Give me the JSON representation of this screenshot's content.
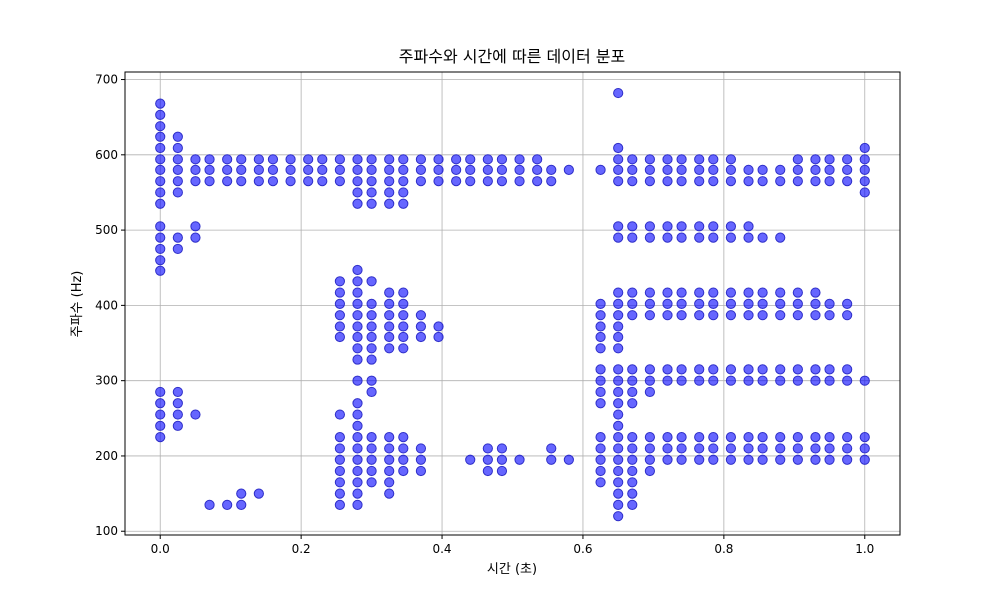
{
  "chart_data": {
    "type": "scatter",
    "title": "주파수와 시간에 따른 데이터 분포",
    "xlabel": "시간 (초)",
    "ylabel": "주파수 (Hz)",
    "xlim": [
      -0.05,
      1.05
    ],
    "ylim": [
      95,
      710
    ],
    "xticks": [
      0.0,
      0.2,
      0.4,
      0.6,
      0.8,
      1.0
    ],
    "xtick_labels": [
      "0.0",
      "0.2",
      "0.4",
      "0.6",
      "0.8",
      "1.0"
    ],
    "yticks": [
      100,
      200,
      300,
      400,
      500,
      600,
      700
    ],
    "ytick_labels": [
      "100",
      "200",
      "300",
      "400",
      "500",
      "600",
      "700"
    ],
    "grid": true,
    "marker_color": "#0000ff",
    "marker_alpha": 0.6,
    "points": [
      [
        0.0,
        668
      ],
      [
        0.0,
        653
      ],
      [
        0.0,
        638
      ],
      [
        0.0,
        624
      ],
      [
        0.0,
        609
      ],
      [
        0.0,
        594
      ],
      [
        0.0,
        580
      ],
      [
        0.0,
        565
      ],
      [
        0.0,
        550
      ],
      [
        0.0,
        535
      ],
      [
        0.0,
        505
      ],
      [
        0.0,
        490
      ],
      [
        0.0,
        475
      ],
      [
        0.0,
        460
      ],
      [
        0.0,
        446
      ],
      [
        0.0,
        285
      ],
      [
        0.0,
        270
      ],
      [
        0.0,
        255
      ],
      [
        0.0,
        240
      ],
      [
        0.0,
        225
      ],
      [
        0.025,
        624
      ],
      [
        0.025,
        609
      ],
      [
        0.025,
        594
      ],
      [
        0.025,
        580
      ],
      [
        0.025,
        565
      ],
      [
        0.025,
        550
      ],
      [
        0.025,
        490
      ],
      [
        0.025,
        475
      ],
      [
        0.025,
        285
      ],
      [
        0.025,
        270
      ],
      [
        0.025,
        255
      ],
      [
        0.025,
        240
      ],
      [
        0.05,
        594
      ],
      [
        0.05,
        580
      ],
      [
        0.05,
        565
      ],
      [
        0.05,
        505
      ],
      [
        0.05,
        490
      ],
      [
        0.05,
        255
      ],
      [
        0.07,
        594
      ],
      [
        0.07,
        580
      ],
      [
        0.07,
        565
      ],
      [
        0.07,
        135
      ],
      [
        0.095,
        594
      ],
      [
        0.095,
        580
      ],
      [
        0.095,
        565
      ],
      [
        0.095,
        135
      ],
      [
        0.115,
        594
      ],
      [
        0.115,
        580
      ],
      [
        0.115,
        565
      ],
      [
        0.115,
        150
      ],
      [
        0.115,
        135
      ],
      [
        0.14,
        594
      ],
      [
        0.14,
        580
      ],
      [
        0.14,
        565
      ],
      [
        0.14,
        150
      ],
      [
        0.16,
        594
      ],
      [
        0.16,
        580
      ],
      [
        0.16,
        565
      ],
      [
        0.185,
        594
      ],
      [
        0.185,
        580
      ],
      [
        0.185,
        565
      ],
      [
        0.21,
        594
      ],
      [
        0.21,
        580
      ],
      [
        0.21,
        565
      ],
      [
        0.23,
        594
      ],
      [
        0.23,
        580
      ],
      [
        0.23,
        565
      ],
      [
        0.255,
        594
      ],
      [
        0.255,
        580
      ],
      [
        0.255,
        565
      ],
      [
        0.255,
        432
      ],
      [
        0.255,
        417
      ],
      [
        0.255,
        402
      ],
      [
        0.255,
        387
      ],
      [
        0.255,
        372
      ],
      [
        0.255,
        358
      ],
      [
        0.255,
        255
      ],
      [
        0.255,
        225
      ],
      [
        0.255,
        210
      ],
      [
        0.255,
        195
      ],
      [
        0.255,
        180
      ],
      [
        0.255,
        165
      ],
      [
        0.255,
        150
      ],
      [
        0.255,
        135
      ],
      [
        0.28,
        594
      ],
      [
        0.28,
        580
      ],
      [
        0.28,
        565
      ],
      [
        0.28,
        550
      ],
      [
        0.28,
        535
      ],
      [
        0.28,
        447
      ],
      [
        0.28,
        432
      ],
      [
        0.28,
        417
      ],
      [
        0.28,
        402
      ],
      [
        0.28,
        387
      ],
      [
        0.28,
        372
      ],
      [
        0.28,
        358
      ],
      [
        0.28,
        343
      ],
      [
        0.28,
        328
      ],
      [
        0.28,
        300
      ],
      [
        0.28,
        270
      ],
      [
        0.28,
        255
      ],
      [
        0.28,
        240
      ],
      [
        0.28,
        225
      ],
      [
        0.28,
        210
      ],
      [
        0.28,
        195
      ],
      [
        0.28,
        180
      ],
      [
        0.28,
        165
      ],
      [
        0.28,
        150
      ],
      [
        0.28,
        135
      ],
      [
        0.3,
        594
      ],
      [
        0.3,
        580
      ],
      [
        0.3,
        565
      ],
      [
        0.3,
        550
      ],
      [
        0.3,
        535
      ],
      [
        0.3,
        432
      ],
      [
        0.3,
        402
      ],
      [
        0.3,
        387
      ],
      [
        0.3,
        372
      ],
      [
        0.3,
        358
      ],
      [
        0.3,
        343
      ],
      [
        0.3,
        328
      ],
      [
        0.3,
        300
      ],
      [
        0.3,
        285
      ],
      [
        0.3,
        225
      ],
      [
        0.3,
        210
      ],
      [
        0.3,
        195
      ],
      [
        0.3,
        180
      ],
      [
        0.3,
        165
      ],
      [
        0.325,
        594
      ],
      [
        0.325,
        580
      ],
      [
        0.325,
        565
      ],
      [
        0.325,
        550
      ],
      [
        0.325,
        535
      ],
      [
        0.325,
        417
      ],
      [
        0.325,
        402
      ],
      [
        0.325,
        387
      ],
      [
        0.325,
        372
      ],
      [
        0.325,
        358
      ],
      [
        0.325,
        343
      ],
      [
        0.325,
        225
      ],
      [
        0.325,
        210
      ],
      [
        0.325,
        195
      ],
      [
        0.325,
        180
      ],
      [
        0.325,
        165
      ],
      [
        0.325,
        150
      ],
      [
        0.345,
        594
      ],
      [
        0.345,
        580
      ],
      [
        0.345,
        565
      ],
      [
        0.345,
        550
      ],
      [
        0.345,
        535
      ],
      [
        0.345,
        417
      ],
      [
        0.345,
        402
      ],
      [
        0.345,
        387
      ],
      [
        0.345,
        372
      ],
      [
        0.345,
        358
      ],
      [
        0.345,
        343
      ],
      [
        0.345,
        225
      ],
      [
        0.345,
        210
      ],
      [
        0.345,
        195
      ],
      [
        0.345,
        180
      ],
      [
        0.37,
        594
      ],
      [
        0.37,
        580
      ],
      [
        0.37,
        565
      ],
      [
        0.37,
        387
      ],
      [
        0.37,
        372
      ],
      [
        0.37,
        358
      ],
      [
        0.37,
        210
      ],
      [
        0.37,
        195
      ],
      [
        0.37,
        180
      ],
      [
        0.395,
        594
      ],
      [
        0.395,
        580
      ],
      [
        0.395,
        565
      ],
      [
        0.395,
        372
      ],
      [
        0.395,
        358
      ],
      [
        0.42,
        594
      ],
      [
        0.42,
        580
      ],
      [
        0.42,
        565
      ],
      [
        0.44,
        594
      ],
      [
        0.44,
        580
      ],
      [
        0.44,
        565
      ],
      [
        0.44,
        195
      ],
      [
        0.465,
        594
      ],
      [
        0.465,
        580
      ],
      [
        0.465,
        565
      ],
      [
        0.465,
        210
      ],
      [
        0.465,
        195
      ],
      [
        0.465,
        180
      ],
      [
        0.485,
        594
      ],
      [
        0.485,
        580
      ],
      [
        0.485,
        565
      ],
      [
        0.485,
        210
      ],
      [
        0.485,
        195
      ],
      [
        0.485,
        180
      ],
      [
        0.51,
        594
      ],
      [
        0.51,
        580
      ],
      [
        0.51,
        565
      ],
      [
        0.51,
        195
      ],
      [
        0.535,
        594
      ],
      [
        0.535,
        580
      ],
      [
        0.535,
        565
      ],
      [
        0.555,
        580
      ],
      [
        0.555,
        565
      ],
      [
        0.555,
        210
      ],
      [
        0.555,
        195
      ],
      [
        0.58,
        580
      ],
      [
        0.58,
        195
      ],
      [
        0.625,
        580
      ],
      [
        0.625,
        402
      ],
      [
        0.625,
        387
      ],
      [
        0.625,
        372
      ],
      [
        0.625,
        358
      ],
      [
        0.625,
        343
      ],
      [
        0.625,
        315
      ],
      [
        0.625,
        300
      ],
      [
        0.625,
        285
      ],
      [
        0.625,
        270
      ],
      [
        0.625,
        225
      ],
      [
        0.625,
        210
      ],
      [
        0.625,
        195
      ],
      [
        0.625,
        180
      ],
      [
        0.625,
        165
      ],
      [
        0.65,
        682
      ],
      [
        0.65,
        609
      ],
      [
        0.65,
        594
      ],
      [
        0.65,
        580
      ],
      [
        0.65,
        565
      ],
      [
        0.65,
        505
      ],
      [
        0.65,
        490
      ],
      [
        0.65,
        417
      ],
      [
        0.65,
        402
      ],
      [
        0.65,
        387
      ],
      [
        0.65,
        372
      ],
      [
        0.65,
        358
      ],
      [
        0.65,
        343
      ],
      [
        0.65,
        315
      ],
      [
        0.65,
        300
      ],
      [
        0.65,
        285
      ],
      [
        0.65,
        270
      ],
      [
        0.65,
        255
      ],
      [
        0.65,
        240
      ],
      [
        0.65,
        225
      ],
      [
        0.65,
        210
      ],
      [
        0.65,
        195
      ],
      [
        0.65,
        180
      ],
      [
        0.65,
        165
      ],
      [
        0.65,
        150
      ],
      [
        0.65,
        135
      ],
      [
        0.65,
        120
      ],
      [
        0.67,
        594
      ],
      [
        0.67,
        580
      ],
      [
        0.67,
        565
      ],
      [
        0.67,
        505
      ],
      [
        0.67,
        490
      ],
      [
        0.67,
        417
      ],
      [
        0.67,
        402
      ],
      [
        0.67,
        387
      ],
      [
        0.67,
        315
      ],
      [
        0.67,
        300
      ],
      [
        0.67,
        285
      ],
      [
        0.67,
        270
      ],
      [
        0.67,
        225
      ],
      [
        0.67,
        210
      ],
      [
        0.67,
        195
      ],
      [
        0.67,
        180
      ],
      [
        0.67,
        165
      ],
      [
        0.67,
        150
      ],
      [
        0.67,
        135
      ],
      [
        0.695,
        594
      ],
      [
        0.695,
        580
      ],
      [
        0.695,
        565
      ],
      [
        0.695,
        505
      ],
      [
        0.695,
        490
      ],
      [
        0.695,
        417
      ],
      [
        0.695,
        402
      ],
      [
        0.695,
        387
      ],
      [
        0.695,
        315
      ],
      [
        0.695,
        300
      ],
      [
        0.695,
        285
      ],
      [
        0.695,
        225
      ],
      [
        0.695,
        210
      ],
      [
        0.695,
        195
      ],
      [
        0.695,
        180
      ],
      [
        0.72,
        594
      ],
      [
        0.72,
        580
      ],
      [
        0.72,
        565
      ],
      [
        0.72,
        505
      ],
      [
        0.72,
        490
      ],
      [
        0.72,
        417
      ],
      [
        0.72,
        402
      ],
      [
        0.72,
        387
      ],
      [
        0.72,
        315
      ],
      [
        0.72,
        300
      ],
      [
        0.72,
        225
      ],
      [
        0.72,
        210
      ],
      [
        0.72,
        195
      ],
      [
        0.74,
        594
      ],
      [
        0.74,
        580
      ],
      [
        0.74,
        565
      ],
      [
        0.74,
        505
      ],
      [
        0.74,
        490
      ],
      [
        0.74,
        417
      ],
      [
        0.74,
        402
      ],
      [
        0.74,
        387
      ],
      [
        0.74,
        315
      ],
      [
        0.74,
        300
      ],
      [
        0.74,
        225
      ],
      [
        0.74,
        210
      ],
      [
        0.74,
        195
      ],
      [
        0.765,
        594
      ],
      [
        0.765,
        580
      ],
      [
        0.765,
        565
      ],
      [
        0.765,
        505
      ],
      [
        0.765,
        490
      ],
      [
        0.765,
        417
      ],
      [
        0.765,
        402
      ],
      [
        0.765,
        387
      ],
      [
        0.765,
        315
      ],
      [
        0.765,
        300
      ],
      [
        0.765,
        225
      ],
      [
        0.765,
        210
      ],
      [
        0.765,
        195
      ],
      [
        0.785,
        594
      ],
      [
        0.785,
        580
      ],
      [
        0.785,
        565
      ],
      [
        0.785,
        505
      ],
      [
        0.785,
        490
      ],
      [
        0.785,
        417
      ],
      [
        0.785,
        402
      ],
      [
        0.785,
        387
      ],
      [
        0.785,
        315
      ],
      [
        0.785,
        300
      ],
      [
        0.785,
        225
      ],
      [
        0.785,
        210
      ],
      [
        0.785,
        195
      ],
      [
        0.81,
        594
      ],
      [
        0.81,
        580
      ],
      [
        0.81,
        565
      ],
      [
        0.81,
        505
      ],
      [
        0.81,
        490
      ],
      [
        0.81,
        417
      ],
      [
        0.81,
        402
      ],
      [
        0.81,
        387
      ],
      [
        0.81,
        315
      ],
      [
        0.81,
        300
      ],
      [
        0.81,
        225
      ],
      [
        0.81,
        210
      ],
      [
        0.81,
        195
      ],
      [
        0.835,
        580
      ],
      [
        0.835,
        565
      ],
      [
        0.835,
        505
      ],
      [
        0.835,
        490
      ],
      [
        0.835,
        417
      ],
      [
        0.835,
        402
      ],
      [
        0.835,
        387
      ],
      [
        0.835,
        315
      ],
      [
        0.835,
        300
      ],
      [
        0.835,
        225
      ],
      [
        0.835,
        210
      ],
      [
        0.835,
        195
      ],
      [
        0.855,
        580
      ],
      [
        0.855,
        565
      ],
      [
        0.855,
        490
      ],
      [
        0.855,
        417
      ],
      [
        0.855,
        402
      ],
      [
        0.855,
        387
      ],
      [
        0.855,
        315
      ],
      [
        0.855,
        300
      ],
      [
        0.855,
        225
      ],
      [
        0.855,
        210
      ],
      [
        0.855,
        195
      ],
      [
        0.88,
        580
      ],
      [
        0.88,
        565
      ],
      [
        0.88,
        490
      ],
      [
        0.88,
        417
      ],
      [
        0.88,
        402
      ],
      [
        0.88,
        387
      ],
      [
        0.88,
        315
      ],
      [
        0.88,
        300
      ],
      [
        0.88,
        225
      ],
      [
        0.88,
        210
      ],
      [
        0.88,
        195
      ],
      [
        0.905,
        594
      ],
      [
        0.905,
        580
      ],
      [
        0.905,
        565
      ],
      [
        0.905,
        417
      ],
      [
        0.905,
        402
      ],
      [
        0.905,
        387
      ],
      [
        0.905,
        315
      ],
      [
        0.905,
        300
      ],
      [
        0.905,
        225
      ],
      [
        0.905,
        210
      ],
      [
        0.905,
        195
      ],
      [
        0.93,
        594
      ],
      [
        0.93,
        580
      ],
      [
        0.93,
        565
      ],
      [
        0.93,
        417
      ],
      [
        0.93,
        402
      ],
      [
        0.93,
        387
      ],
      [
        0.93,
        315
      ],
      [
        0.93,
        300
      ],
      [
        0.93,
        225
      ],
      [
        0.93,
        210
      ],
      [
        0.93,
        195
      ],
      [
        0.95,
        594
      ],
      [
        0.95,
        580
      ],
      [
        0.95,
        565
      ],
      [
        0.95,
        402
      ],
      [
        0.95,
        387
      ],
      [
        0.95,
        315
      ],
      [
        0.95,
        300
      ],
      [
        0.95,
        225
      ],
      [
        0.95,
        210
      ],
      [
        0.95,
        195
      ],
      [
        0.975,
        594
      ],
      [
        0.975,
        580
      ],
      [
        0.975,
        565
      ],
      [
        0.975,
        402
      ],
      [
        0.975,
        387
      ],
      [
        0.975,
        315
      ],
      [
        0.975,
        300
      ],
      [
        0.975,
        225
      ],
      [
        0.975,
        210
      ],
      [
        0.975,
        195
      ],
      [
        1.0,
        609
      ],
      [
        1.0,
        594
      ],
      [
        1.0,
        580
      ],
      [
        1.0,
        565
      ],
      [
        1.0,
        550
      ],
      [
        1.0,
        300
      ],
      [
        1.0,
        225
      ],
      [
        1.0,
        210
      ],
      [
        1.0,
        195
      ]
    ]
  }
}
